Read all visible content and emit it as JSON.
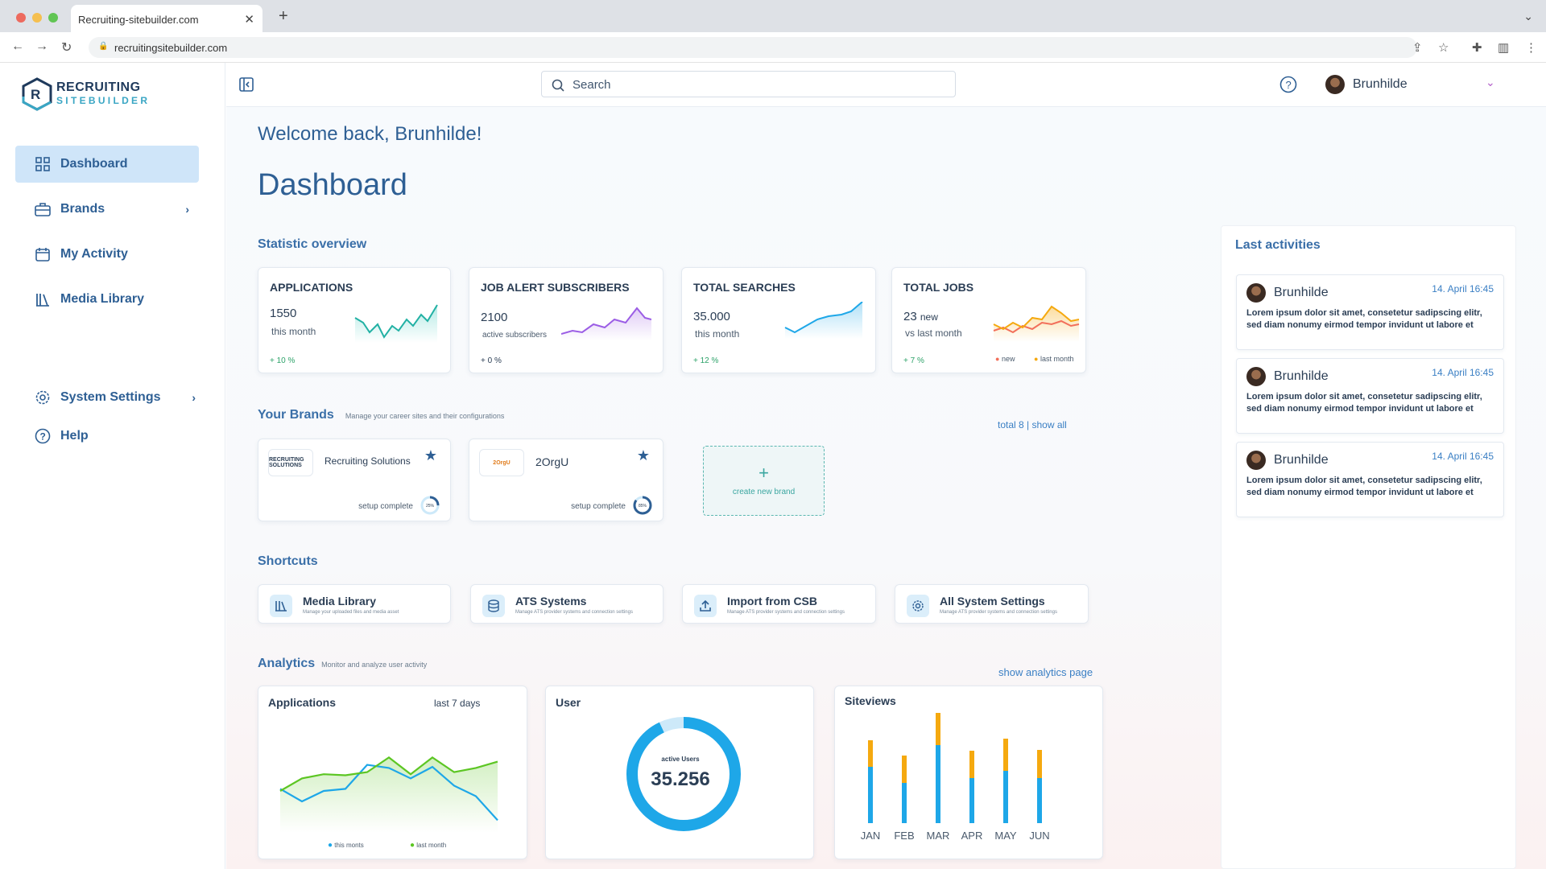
{
  "browser": {
    "tab_title": "Recruiting-sitebuilder.com",
    "url": "recruitingsitebuilder.com"
  },
  "logo": {
    "line1": "RECRUITING",
    "line2": "SITEBUILDER"
  },
  "sidebar": {
    "items": [
      {
        "label": "Dashboard",
        "icon": "grid-icon"
      },
      {
        "label": "Brands",
        "icon": "briefcase-icon"
      },
      {
        "label": "My Activity",
        "icon": "calendar-icon"
      },
      {
        "label": "Media Library",
        "icon": "library-icon"
      },
      {
        "label": "System Settings",
        "icon": "gear-icon"
      },
      {
        "label": "Help",
        "icon": "help-icon"
      }
    ]
  },
  "topbar": {
    "search_placeholder": "Search",
    "user_name": "Brunhilde"
  },
  "main": {
    "welcome": "Welcome back, Brunhilde!",
    "title": "Dashboard",
    "stat_title": "Statistic overview",
    "stats": [
      {
        "title": "APPLICATIONS",
        "value": "1550",
        "label": "this month",
        "change": "+ 10 %"
      },
      {
        "title": "JOB ALERT SUBSCRIBERS",
        "value": "2100",
        "label": "active subscribers",
        "change": "+ 0 %"
      },
      {
        "title": "TOTAL SEARCHES",
        "value": "35.000",
        "label": "this month",
        "change": "+ 12 %"
      },
      {
        "title": "TOTAL JOBS",
        "value": "23",
        "value_suffix": "new",
        "label": "vs last month",
        "change": "+ 7 %",
        "legend_new": "new",
        "legend_last": "last month"
      }
    ],
    "brands_title": "Your Brands",
    "brands_sub": "Manage your career sites and their configurations",
    "brands_total": "total 8 | show all",
    "brands": [
      {
        "name": "Recruiting Solutions",
        "logo_text": "RECRUITING SOLUTIONS",
        "status": "setup complete",
        "percent": "25%",
        "fraction": 0.25
      },
      {
        "name": "2OrgU",
        "logo_text": "2OrgU",
        "status": "setup complete",
        "percent": "85%",
        "fraction": 0.85
      }
    ],
    "new_brand": "create new brand",
    "shortcuts_title": "Shortcuts",
    "shortcuts": [
      {
        "title": "Media Library",
        "desc": "Manage your uploaded files and media asset",
        "icon": "library-icon"
      },
      {
        "title": "ATS Systems",
        "desc": "Manage ATS provider systems and connection settings",
        "icon": "database-icon"
      },
      {
        "title": "Import from CSB",
        "desc": "Manage ATS provider systems and connection settings",
        "icon": "upload-icon"
      },
      {
        "title": "All System Settings",
        "desc": "Manage ATS provider systems and connection settings",
        "icon": "gear-icon"
      }
    ],
    "analytics_title": "Analytics",
    "analytics_sub": "Monitor and analyze user activity",
    "analytics_link": "show analytics page",
    "app_card": {
      "title": "Applications",
      "period": "last 7 days",
      "legend_this": "this monts",
      "legend_last": "last month"
    },
    "user_card": {
      "title": "User",
      "center_label": "active Users",
      "center_value": "35.256"
    },
    "siteviews_card": {
      "title": "Siteviews"
    }
  },
  "activities": {
    "title": "Last activities",
    "items": [
      {
        "who": "Brunhilde",
        "when": "14. April  16:45",
        "text": "Lorem ipsum dolor sit amet, consetetur sadipscing elitr, sed diam nonumy eirmod tempor invidunt ut labore et"
      },
      {
        "who": "Brunhilde",
        "when": "14. April  16:45",
        "text": "Lorem ipsum dolor sit amet, consetetur sadipscing elitr, sed diam nonumy eirmod tempor invidunt ut labore et"
      },
      {
        "who": "Brunhilde",
        "when": "14. April  16:45",
        "text": "Lorem ipsum dolor sit amet, consetetur sadipscing elitr, sed diam nonumy eirmod tempor invidunt ut labore et"
      }
    ]
  },
  "chart_data": [
    {
      "type": "line",
      "title": "Applications",
      "x": [
        1,
        2,
        3,
        4,
        5,
        6,
        7,
        8,
        9,
        10,
        11
      ],
      "series": [
        {
          "name": "this monts",
          "color": "#1ea7e8",
          "values": [
            42,
            30,
            40,
            42,
            65,
            62,
            52,
            63,
            45,
            35,
            12
          ]
        },
        {
          "name": "last month",
          "color": "#5cc623",
          "values": [
            40,
            52,
            56,
            55,
            58,
            72,
            56,
            72,
            58,
            62,
            68
          ]
        }
      ],
      "ylim": [
        0,
        100
      ]
    },
    {
      "type": "pie",
      "title": "User",
      "values": [
        93,
        7
      ],
      "colors": [
        "#1ea7e8",
        "#cde9f9"
      ]
    },
    {
      "type": "bar",
      "title": "Siteviews",
      "categories": [
        "JAN",
        "FEB",
        "MAR",
        "APR",
        "MAY",
        "JUN"
      ],
      "series": [
        {
          "name": "base",
          "color": "#1ea7e8",
          "values": [
            70,
            50,
            97,
            56,
            65,
            56
          ]
        },
        {
          "name": "top",
          "color": "#f5a90f",
          "values": [
            33,
            34,
            40,
            34,
            40,
            35
          ]
        }
      ],
      "ylim": [
        0,
        140
      ]
    }
  ]
}
